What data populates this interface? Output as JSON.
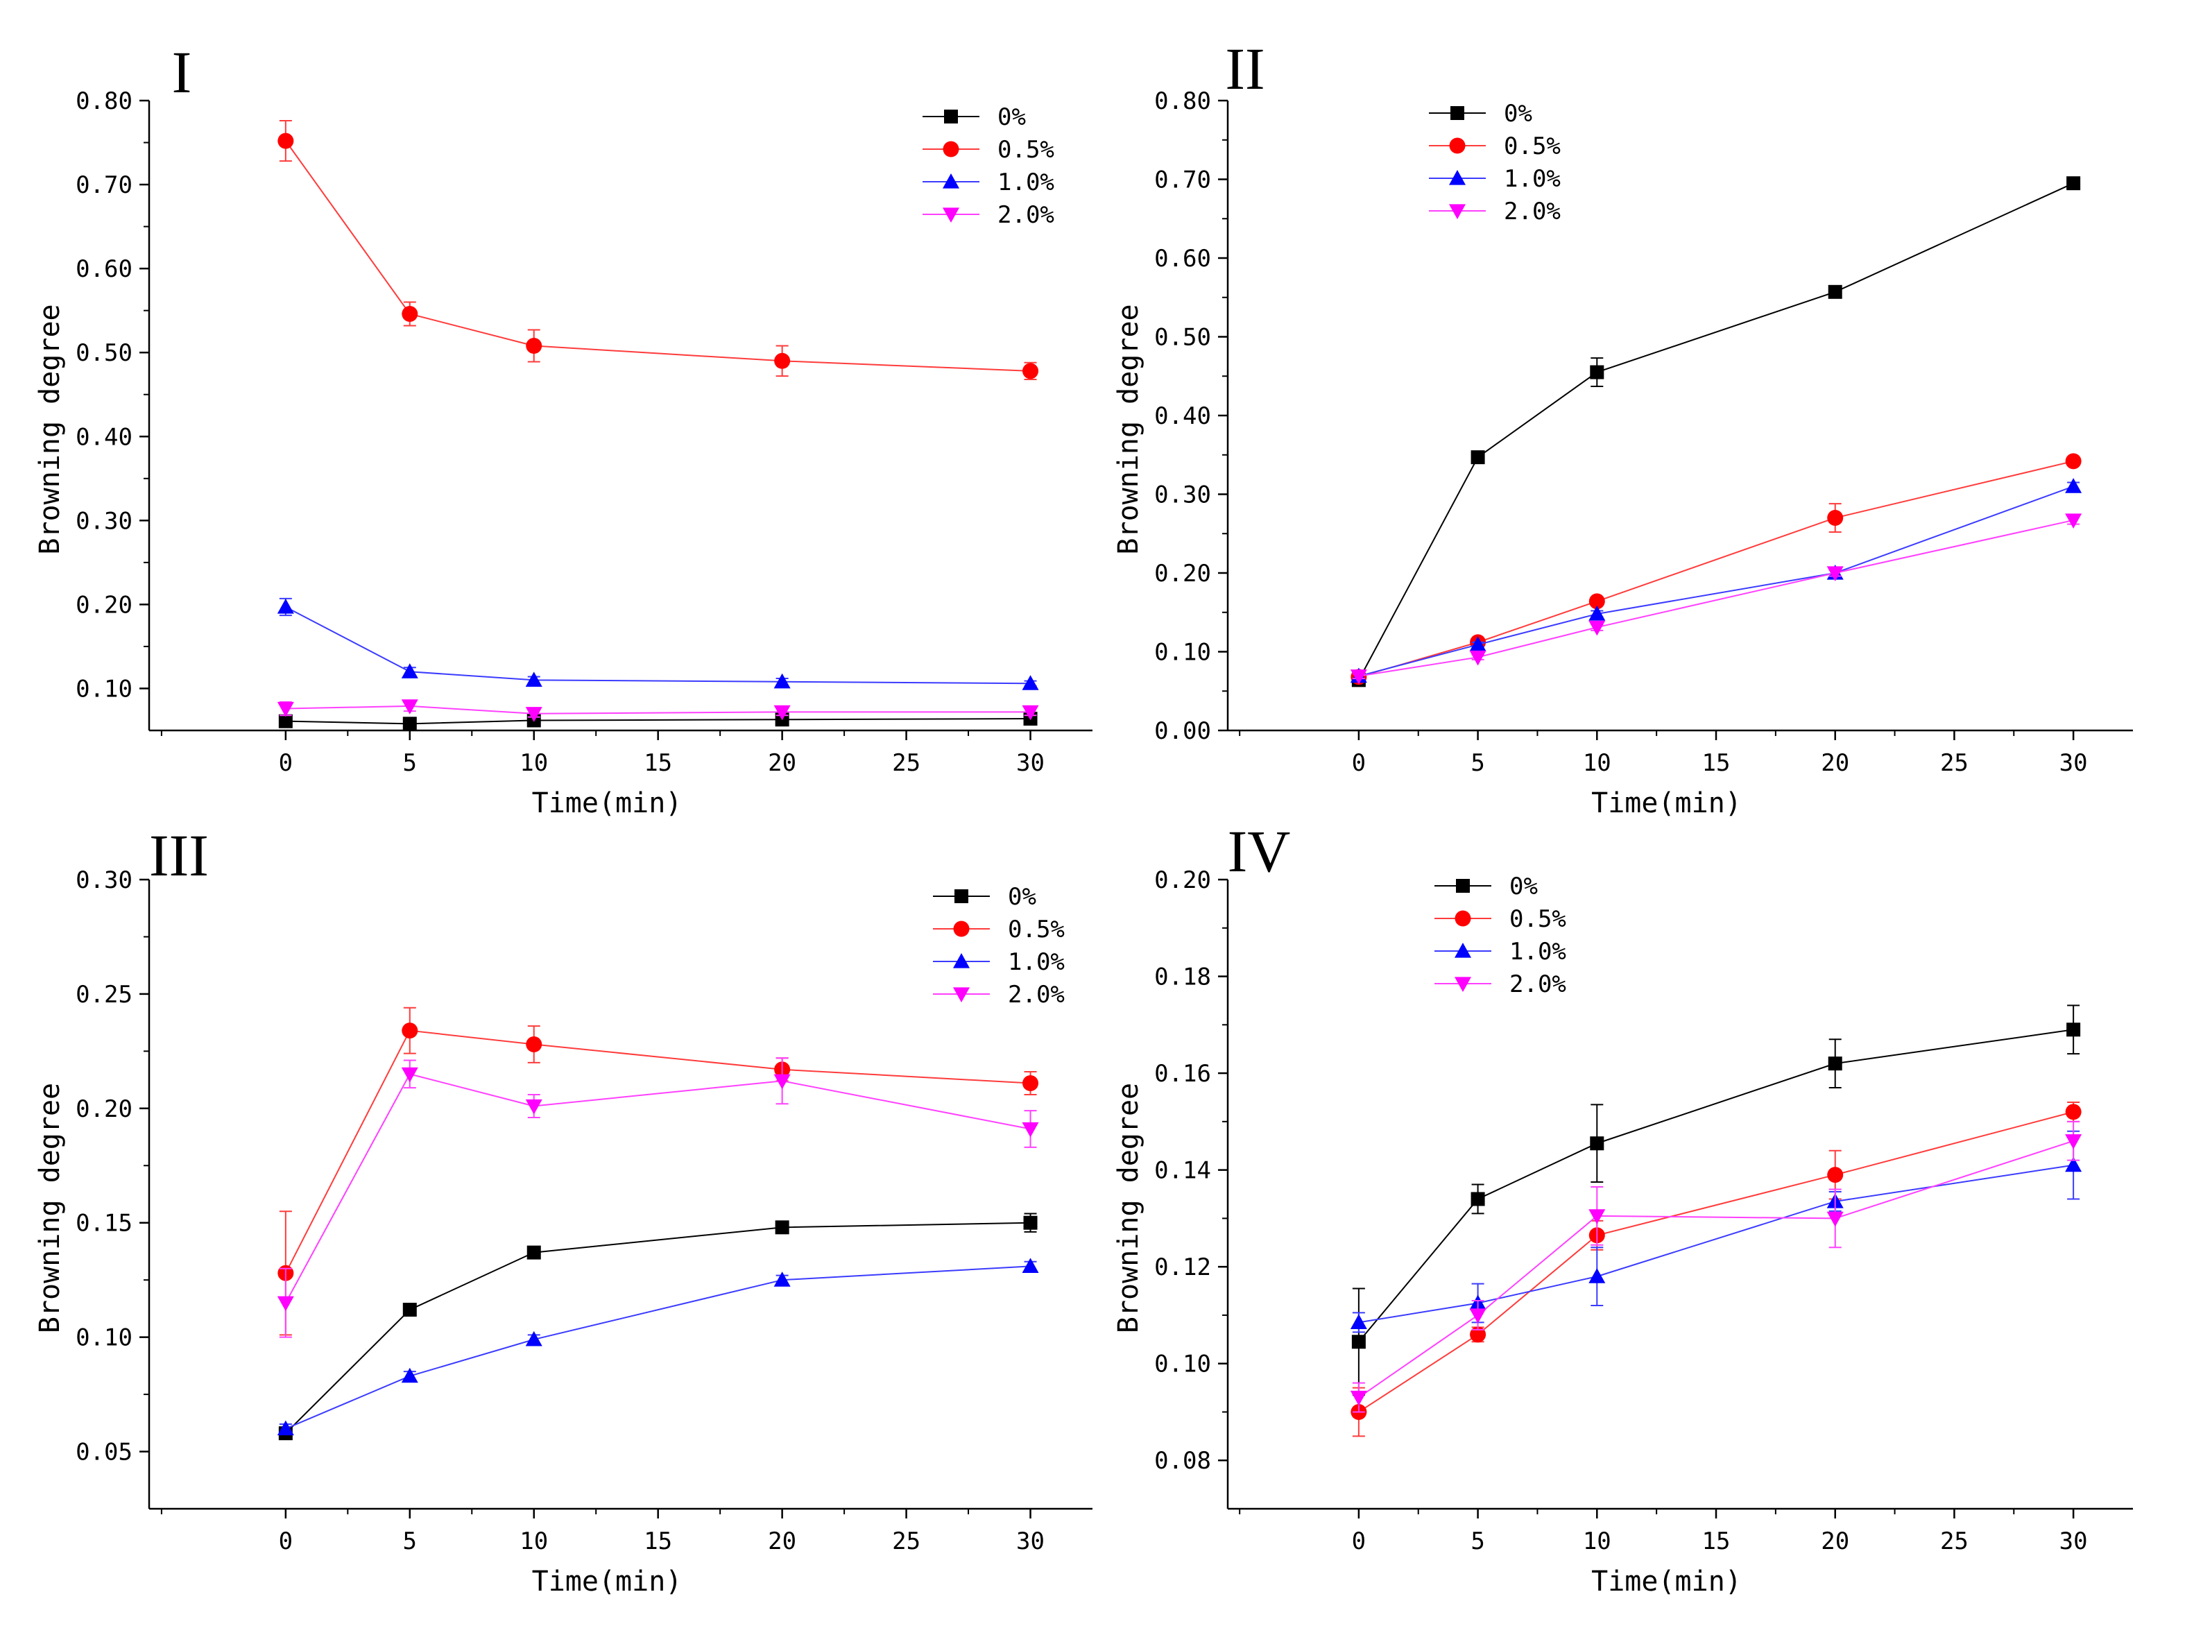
{
  "figure": {
    "series_styles": [
      {
        "name": "0%",
        "line": "#000000",
        "marker": "square",
        "fill": "#000000"
      },
      {
        "name": "0.5%",
        "line": "#ff3b3b",
        "marker": "circle",
        "fill": "#ff0000"
      },
      {
        "name": "1.0%",
        "line": "#3b3bff",
        "marker": "triangle-up",
        "fill": "#0000ff"
      },
      {
        "name": "2.0%",
        "line": "#ff40ff",
        "marker": "triangle-down",
        "fill": "#ff00ff"
      }
    ]
  },
  "chart_data": [
    {
      "type": "line",
      "panel_label": "I",
      "xlabel": "Time(min)",
      "ylabel": "Browning degree",
      "xlim": [
        -5.5,
        32.5
      ],
      "xticks": [
        0,
        5,
        10,
        15,
        20,
        25,
        30
      ],
      "xtick_labels": [
        "0",
        "5",
        "10",
        "15",
        "20",
        "25",
        "30"
      ],
      "ylim": [
        0.05,
        0.8
      ],
      "yticks": [
        0.1,
        0.2,
        0.3,
        0.4,
        0.5,
        0.6,
        0.7,
        0.8
      ],
      "ytick_labels": [
        "0.10",
        "0.20",
        "0.30",
        "0.40",
        "0.50",
        "0.60",
        "0.70",
        "0.80"
      ],
      "legend_position": "top-right",
      "x": [
        0,
        5,
        10,
        20,
        30
      ],
      "series": [
        {
          "name": "0%",
          "values": [
            0.061,
            0.058,
            0.062,
            0.063,
            0.064
          ],
          "errors": [
            0.004,
            0.003,
            0.003,
            0.003,
            0.003
          ]
        },
        {
          "name": "0.5%",
          "values": [
            0.752,
            0.546,
            0.508,
            0.49,
            0.478
          ],
          "errors": [
            0.024,
            0.014,
            0.019,
            0.018,
            0.01
          ]
        },
        {
          "name": "1.0%",
          "values": [
            0.197,
            0.12,
            0.11,
            0.108,
            0.106
          ],
          "errors": [
            0.01,
            0.005,
            0.004,
            0.004,
            0.003
          ]
        },
        {
          "name": "2.0%",
          "values": [
            0.076,
            0.079,
            0.07,
            0.072,
            0.072
          ],
          "errors": [
            0.008,
            0.006,
            0.004,
            0.004,
            0.004
          ]
        }
      ]
    },
    {
      "type": "line",
      "panel_label": "II",
      "xlabel": "Time(min)",
      "ylabel": "Browning degree",
      "xlim": [
        -5.5,
        32.5
      ],
      "xticks": [
        0,
        5,
        10,
        15,
        20,
        25,
        30
      ],
      "xtick_labels": [
        "0",
        "5",
        "10",
        "15",
        "20",
        "25",
        "30"
      ],
      "ylim": [
        0.0,
        0.8
      ],
      "yticks": [
        0.0,
        0.1,
        0.2,
        0.3,
        0.4,
        0.5,
        0.6,
        0.7,
        0.8
      ],
      "ytick_labels": [
        "0.00",
        "0.10",
        "0.20",
        "0.30",
        "0.40",
        "0.50",
        "0.60",
        "0.70",
        "0.80"
      ],
      "legend_position": "top-left",
      "x": [
        0,
        5,
        10,
        20,
        30
      ],
      "series": [
        {
          "name": "0%",
          "values": [
            0.064,
            0.347,
            0.455,
            0.557,
            0.695
          ],
          "errors": [
            0.004,
            0.006,
            0.018,
            0.006,
            0.005
          ]
        },
        {
          "name": "0.5%",
          "values": [
            0.068,
            0.112,
            0.164,
            0.27,
            0.342
          ],
          "errors": [
            0.003,
            0.004,
            0.005,
            0.018,
            0.005
          ]
        },
        {
          "name": "1.0%",
          "values": [
            0.069,
            0.109,
            0.148,
            0.2,
            0.31
          ],
          "errors": [
            0.003,
            0.003,
            0.004,
            0.004,
            0.005
          ]
        },
        {
          "name": "2.0%",
          "values": [
            0.069,
            0.093,
            0.131,
            0.2,
            0.267
          ],
          "errors": [
            0.003,
            0.003,
            0.004,
            0.004,
            0.005
          ]
        }
      ]
    },
    {
      "type": "line",
      "panel_label": "III",
      "xlabel": "Time(min)",
      "ylabel": "Browning degree",
      "xlim": [
        -5.5,
        32.5
      ],
      "xticks": [
        0,
        5,
        10,
        15,
        20,
        25,
        30
      ],
      "xtick_labels": [
        "0",
        "5",
        "10",
        "15",
        "20",
        "25",
        "30"
      ],
      "ylim": [
        0.025,
        0.3
      ],
      "yticks": [
        0.05,
        0.1,
        0.15,
        0.2,
        0.25,
        0.3
      ],
      "ytick_labels": [
        "0.05",
        "0.10",
        "0.15",
        "0.20",
        "0.25",
        "0.30"
      ],
      "legend_position": "top-right",
      "x": [
        0,
        5,
        10,
        20,
        30
      ],
      "series": [
        {
          "name": "0%",
          "values": [
            0.058,
            0.112,
            0.137,
            0.148,
            0.15
          ],
          "errors": [
            0.002,
            0.002,
            0.002,
            0.002,
            0.004
          ]
        },
        {
          "name": "0.5%",
          "values": [
            0.128,
            0.234,
            0.228,
            0.217,
            0.211
          ],
          "errors": [
            0.027,
            0.01,
            0.008,
            0.005,
            0.005
          ]
        },
        {
          "name": "1.0%",
          "values": [
            0.06,
            0.083,
            0.099,
            0.125,
            0.131
          ],
          "errors": [
            0.002,
            0.002,
            0.002,
            0.002,
            0.002
          ]
        },
        {
          "name": "2.0%",
          "values": [
            0.115,
            0.215,
            0.201,
            0.212,
            0.191
          ],
          "errors": [
            0.015,
            0.006,
            0.005,
            0.01,
            0.008
          ]
        }
      ]
    },
    {
      "type": "line",
      "panel_label": "IV",
      "xlabel": "Time(min)",
      "ylabel": "Browning degree",
      "xlim": [
        -5.5,
        32.5
      ],
      "xticks": [
        0,
        5,
        10,
        15,
        20,
        25,
        30
      ],
      "xtick_labels": [
        "0",
        "5",
        "10",
        "15",
        "20",
        "25",
        "30"
      ],
      "ylim": [
        0.07,
        0.2
      ],
      "yticks": [
        0.08,
        0.1,
        0.12,
        0.14,
        0.16,
        0.18,
        0.2
      ],
      "ytick_labels": [
        "0.08",
        "0.10",
        "0.12",
        "0.14",
        "0.16",
        "0.18",
        "0.20"
      ],
      "legend_position": "top-left",
      "x": [
        0,
        5,
        10,
        20,
        30
      ],
      "series": [
        {
          "name": "0%",
          "values": [
            0.1045,
            0.134,
            0.1455,
            0.162,
            0.169
          ],
          "errors": [
            0.011,
            0.003,
            0.008,
            0.005,
            0.005
          ]
        },
        {
          "name": "0.5%",
          "values": [
            0.09,
            0.106,
            0.1265,
            0.139,
            0.152
          ],
          "errors": [
            0.005,
            0.0015,
            0.003,
            0.005,
            0.002
          ]
        },
        {
          "name": "1.0%",
          "values": [
            0.1085,
            0.1125,
            0.118,
            0.1335,
            0.141
          ],
          "errors": [
            0.002,
            0.004,
            0.006,
            0.002,
            0.007
          ]
        },
        {
          "name": "2.0%",
          "values": [
            0.093,
            0.11,
            0.1305,
            0.13,
            0.146
          ],
          "errors": [
            0.003,
            0.003,
            0.006,
            0.006,
            0.004
          ]
        }
      ]
    }
  ]
}
